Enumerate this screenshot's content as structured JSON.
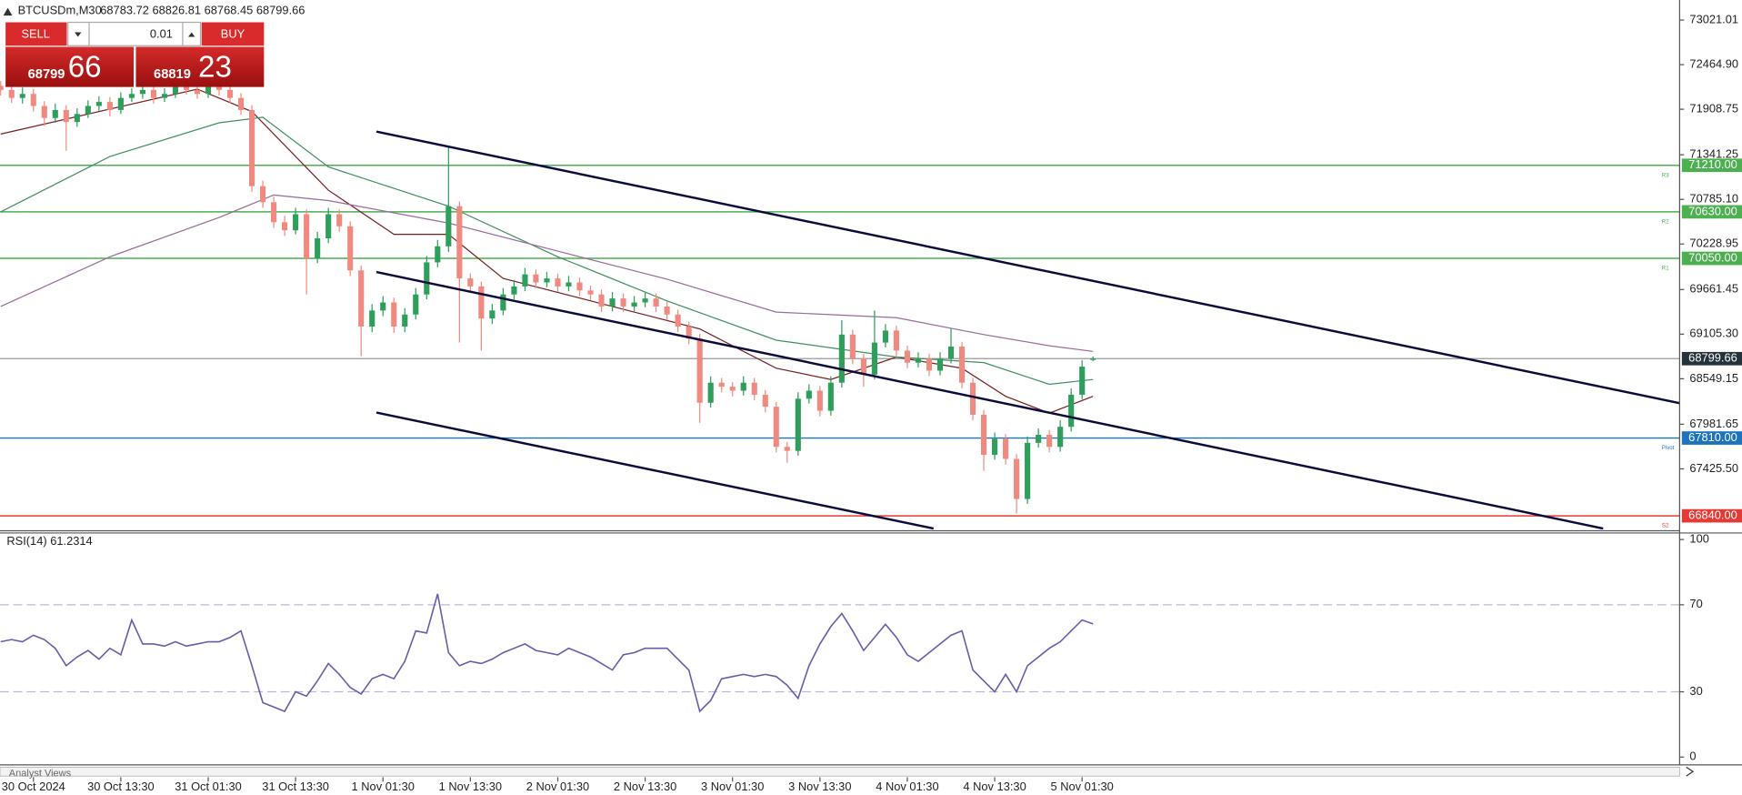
{
  "header": {
    "symbol": "BTCUSDm,M30",
    "ohlc": "68783.72 68826.81 68768.45 68799.66"
  },
  "trade_panel": {
    "sell": "SELL",
    "buy": "BUY",
    "lot": "0.01",
    "sell_small": "68799",
    "sell_big": "66",
    "buy_small": "68819",
    "buy_big": "23"
  },
  "footer": {
    "text": "Analyst Views"
  },
  "chart_data": [
    {
      "type": "candlestick",
      "ylim": [
        66668,
        73271
      ],
      "xlim": [
        -0.06,
        153.7
      ],
      "yticks": [
        73021.01,
        {
          "value": 72464.9,
          "label": "72464.90"
        },
        71908.75,
        71341.25,
        {
          "value": 70785.1,
          "label": "70785.10"
        },
        70228.95,
        69661.45,
        {
          "value": 69105.3,
          "label": "69105.30"
        },
        68549.15,
        67981.65,
        {
          "value": 67425.5,
          "label": "67425.50"
        }
      ],
      "xticks": [
        {
          "value": 3,
          "label": "30 Oct 2024"
        },
        {
          "value": 11,
          "label": "30 Oct 13:30"
        },
        {
          "value": 19,
          "label": "31 Oct 01:30"
        },
        {
          "value": 27,
          "label": "31 Oct 13:30"
        },
        {
          "value": 35,
          "label": "1 Nov 01:30"
        },
        {
          "value": 43,
          "label": "1 Nov 13:30"
        },
        {
          "value": 51,
          "label": "2 Nov 01:30"
        },
        {
          "value": 59,
          "label": "2 Nov 13:30"
        },
        {
          "value": 67,
          "label": "3 Nov 01:30"
        },
        {
          "value": 75,
          "label": "3 Nov 13:30"
        },
        {
          "value": 83,
          "label": "4 Nov 01:30"
        },
        {
          "value": 91,
          "label": "4 Nov 13:30"
        },
        {
          "value": 99,
          "label": "5 Nov 01:30"
        }
      ],
      "up_color": "#2e9e5b",
      "down_color": "#f08a80",
      "candles": [
        [
          72200,
          72260,
          72080,
          72150
        ],
        [
          72150,
          72210,
          71990,
          72050
        ],
        [
          72050,
          72180,
          71980,
          72100
        ],
        [
          72100,
          72160,
          71880,
          71950
        ],
        [
          71950,
          72010,
          71700,
          71800
        ],
        [
          71800,
          71980,
          71740,
          71900
        ],
        [
          71900,
          71960,
          71390,
          71750
        ],
        [
          71750,
          71920,
          71690,
          71850
        ],
        [
          71850,
          72020,
          71800,
          71950
        ],
        [
          71950,
          72070,
          71890,
          72000
        ],
        [
          72000,
          72060,
          71820,
          71900
        ],
        [
          71900,
          72120,
          71850,
          72050
        ],
        [
          72050,
          72170,
          72000,
          72100
        ],
        [
          72100,
          72220,
          72040,
          72150
        ],
        [
          72150,
          72200,
          71980,
          72050
        ],
        [
          72050,
          72170,
          72000,
          72100
        ],
        [
          72100,
          72270,
          72050,
          72200
        ],
        [
          72200,
          72260,
          72090,
          72150
        ],
        [
          72150,
          72210,
          72040,
          72100
        ],
        [
          72100,
          72270,
          72050,
          72200
        ],
        [
          72200,
          72250,
          72080,
          72150
        ],
        [
          72150,
          72200,
          71980,
          72050
        ],
        [
          72050,
          72110,
          71840,
          71900
        ],
        [
          71900,
          71960,
          70880,
          70950
        ],
        [
          70950,
          71020,
          70680,
          70750
        ],
        [
          70750,
          70820,
          70430,
          70500
        ],
        [
          70500,
          70580,
          70330,
          70400
        ],
        [
          70400,
          70680,
          70350,
          70600
        ],
        [
          70600,
          70660,
          69600,
          70050
        ],
        [
          70050,
          70380,
          69990,
          70300
        ],
        [
          70300,
          70680,
          70240,
          70600
        ],
        [
          70600,
          70660,
          70380,
          70450
        ],
        [
          70450,
          70510,
          69830,
          69900
        ],
        [
          69900,
          69960,
          68830,
          69200
        ],
        [
          69200,
          69480,
          69130,
          69400
        ],
        [
          69400,
          69580,
          69330,
          69500
        ],
        [
          69500,
          69560,
          69120,
          69200
        ],
        [
          69200,
          69430,
          69130,
          69350
        ],
        [
          69350,
          69680,
          69290,
          69600
        ],
        [
          69600,
          70080,
          69540,
          70000
        ],
        [
          70000,
          70280,
          69940,
          70200
        ],
        [
          70200,
          71450,
          70130,
          70700
        ],
        [
          70700,
          70760,
          69000,
          69800
        ],
        [
          69800,
          69860,
          69620,
          69700
        ],
        [
          69700,
          69760,
          68900,
          69300
        ],
        [
          69300,
          69480,
          69230,
          69400
        ],
        [
          69400,
          69680,
          69340,
          69600
        ],
        [
          69600,
          69780,
          69540,
          69700
        ],
        [
          69700,
          69930,
          69640,
          69850
        ],
        [
          69850,
          69910,
          69680,
          69750
        ],
        [
          69750,
          69880,
          69690,
          69800
        ],
        [
          69800,
          69860,
          69630,
          69700
        ],
        [
          69700,
          69830,
          69640,
          69750
        ],
        [
          69750,
          69810,
          69580,
          69650
        ],
        [
          69650,
          69710,
          69530,
          69600
        ],
        [
          69600,
          69660,
          69380,
          69450
        ],
        [
          69450,
          69630,
          69390,
          69550
        ],
        [
          69550,
          69610,
          69380,
          69450
        ],
        [
          69450,
          69580,
          69390,
          69500
        ],
        [
          69500,
          69630,
          69440,
          69550
        ],
        [
          69550,
          69610,
          69380,
          69450
        ],
        [
          69450,
          69510,
          69280,
          69350
        ],
        [
          69350,
          69410,
          69130,
          69200
        ],
        [
          69200,
          69260,
          68980,
          69050
        ],
        [
          69050,
          69110,
          68000,
          68250
        ],
        [
          68250,
          68580,
          68190,
          68500
        ],
        [
          68500,
          68560,
          68380,
          68450
        ],
        [
          68450,
          68510,
          68330,
          68400
        ],
        [
          68400,
          68580,
          68340,
          68500
        ],
        [
          68500,
          68560,
          68280,
          68350
        ],
        [
          68350,
          68410,
          68130,
          68200
        ],
        [
          68200,
          68260,
          67630,
          67700
        ],
        [
          67700,
          67760,
          67500,
          67650
        ],
        [
          67650,
          68380,
          67590,
          68300
        ],
        [
          68300,
          68480,
          68240,
          68400
        ],
        [
          68400,
          68460,
          68080,
          68150
        ],
        [
          68150,
          68580,
          68090,
          68500
        ],
        [
          68500,
          69280,
          68440,
          69100
        ],
        [
          69100,
          69160,
          68730,
          68800
        ],
        [
          68800,
          68860,
          68450,
          68600
        ],
        [
          68600,
          69400,
          68540,
          69000
        ],
        [
          69000,
          69230,
          68940,
          69150
        ],
        [
          69150,
          69210,
          68830,
          68900
        ],
        [
          68900,
          68960,
          68680,
          68750
        ],
        [
          68750,
          68880,
          68690,
          68800
        ],
        [
          68800,
          68860,
          68580,
          68650
        ],
        [
          68650,
          68880,
          68590,
          68800
        ],
        [
          68800,
          69180,
          68740,
          68950
        ],
        [
          68950,
          69010,
          68430,
          68500
        ],
        [
          68500,
          68560,
          68030,
          68100
        ],
        [
          68100,
          68160,
          67400,
          67600
        ],
        [
          67600,
          67880,
          67540,
          67800
        ],
        [
          67800,
          67860,
          67480,
          67550
        ],
        [
          67550,
          67610,
          66870,
          67050
        ],
        [
          67050,
          67830,
          66990,
          67750
        ],
        [
          67750,
          67930,
          67690,
          67850
        ],
        [
          67850,
          67910,
          67630,
          67700
        ],
        [
          67700,
          68030,
          67640,
          67950
        ],
        [
          67950,
          68430,
          67890,
          68350
        ],
        [
          68350,
          68780,
          68290,
          68700
        ],
        [
          68783.72,
          68826.81,
          68768.45,
          68799.66
        ]
      ],
      "series": [
        {
          "color": "#7a1f1f",
          "x": [
            0,
            18,
            23,
            30,
            36,
            41,
            46,
            56,
            64,
            71,
            76,
            82,
            88,
            92,
            96,
            100
          ],
          "values": [
            71600,
            72160,
            71880,
            70900,
            70350,
            70350,
            69800,
            69450,
            69170,
            68680,
            68540,
            68820,
            68680,
            68330,
            68120,
            68330
          ]
        },
        {
          "color": "#3f8f5f",
          "x": [
            0,
            10,
            20,
            24,
            30,
            41,
            51,
            61,
            71,
            82,
            90,
            96,
            100
          ],
          "values": [
            70630,
            71320,
            71740,
            71810,
            71190,
            70700,
            70070,
            69520,
            69030,
            68820,
            68750,
            68480,
            68540
          ]
        },
        {
          "color": "#9a6a9a",
          "x": [
            0,
            10,
            20,
            25,
            30,
            41,
            51,
            61,
            71,
            82,
            90,
            96,
            100
          ],
          "values": [
            69450,
            70070,
            70560,
            70840,
            70770,
            70490,
            70140,
            69790,
            69380,
            69310,
            69100,
            68960,
            68890
          ]
        }
      ],
      "trendlines": [
        {
          "x": [
            34.4,
            153.9
          ],
          "values": [
            71630,
            68239
          ]
        },
        {
          "x": [
            34.4,
            146.7
          ],
          "values": [
            69879,
            66682
          ]
        },
        {
          "x": [
            34.4,
            85.4
          ],
          "values": [
            68127,
            66682
          ]
        }
      ],
      "levels": [
        {
          "value": 71210,
          "label": "71210.00",
          "tag": "R3",
          "color": "#4caf50"
        },
        {
          "value": 70630,
          "label": "70630.00",
          "tag": "R2",
          "color": "#4caf50"
        },
        {
          "value": 70050,
          "label": "70050.00",
          "tag": "R1",
          "color": "#4caf50"
        },
        {
          "value": 67810,
          "label": "67810.00",
          "tag": "Pivot",
          "color": "#1e73be"
        },
        {
          "value": 66840,
          "label": "66840.00",
          "tag": "S2",
          "color": "#e53935"
        }
      ],
      "current_price": {
        "value": 68799.66,
        "label": "68799.66"
      }
    },
    {
      "type": "line",
      "title": "RSI(14) 61.2314",
      "color": "#6a5aaa",
      "ylim": [
        -3.6,
        103
      ],
      "xlim": [
        -0.06,
        153.7
      ],
      "yticks": [
        0,
        30,
        70,
        100
      ],
      "levels": [
        30,
        70
      ],
      "values": [
        53,
        54,
        53,
        56,
        54,
        50,
        42,
        46,
        49,
        45,
        50,
        47,
        63,
        52,
        52,
        51,
        53,
        51,
        52,
        53,
        53,
        55,
        58,
        42,
        25,
        23,
        21,
        30,
        28,
        35,
        43,
        38,
        32,
        29,
        36,
        38,
        36,
        44,
        58,
        57,
        75,
        48,
        42,
        44,
        43,
        45,
        48,
        50,
        52,
        49,
        48,
        47,
        50,
        48,
        46,
        43,
        40,
        47,
        48,
        50,
        50,
        50,
        45,
        40,
        21,
        26,
        36,
        37,
        38,
        37,
        38,
        37,
        33,
        27,
        42,
        52,
        60,
        66,
        58,
        49,
        55,
        61,
        55,
        47,
        44,
        48,
        52,
        56,
        58,
        40,
        35,
        30,
        38,
        30,
        42,
        46,
        50,
        53,
        58,
        63,
        61.23
      ]
    }
  ]
}
